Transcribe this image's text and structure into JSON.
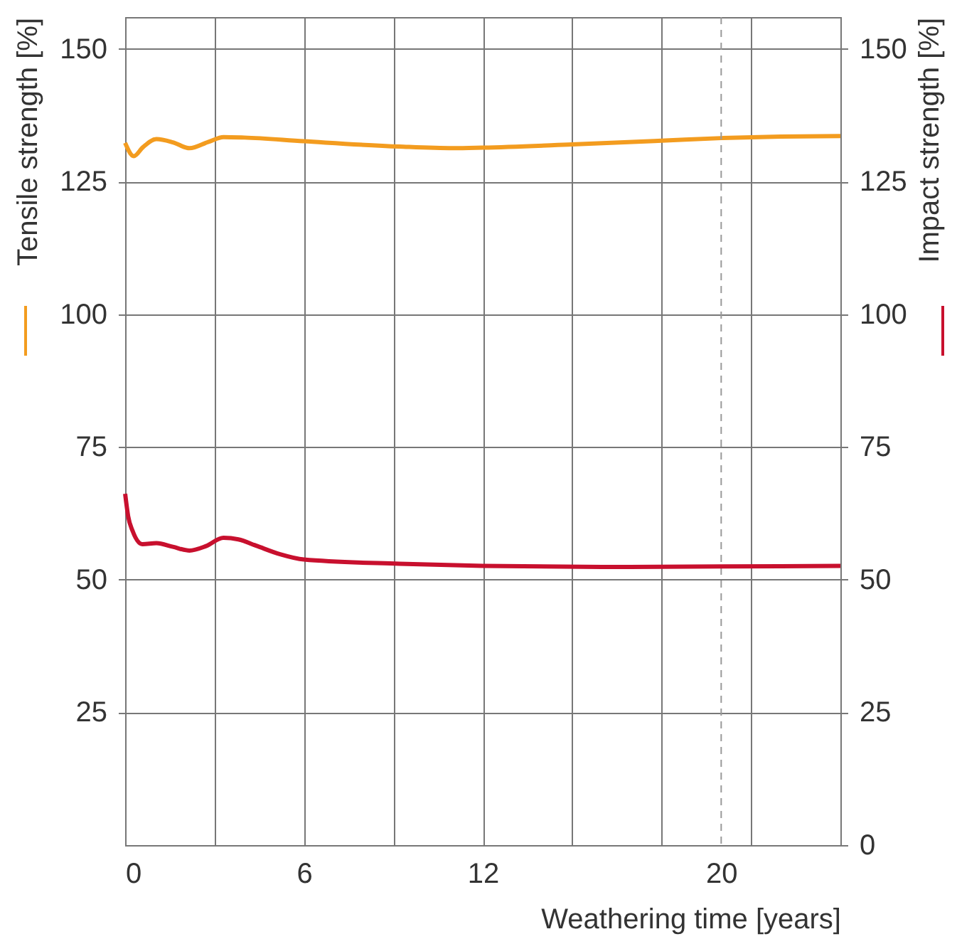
{
  "chart_data": {
    "type": "line",
    "xlabel": "Weathering time [years]",
    "ylabel": "Tensile strength [%]",
    "y2label": "Impact strength [%]",
    "xlim": [
      0,
      24
    ],
    "xticks": [
      0,
      {
        "value": 3,
        "label": null
      },
      6,
      {
        "value": 9,
        "label": null
      },
      12,
      {
        "value": 15,
        "label": null
      },
      {
        "value": 18,
        "label": null
      },
      20,
      {
        "value": 21,
        "label": null
      }
    ],
    "ylim": [
      0,
      156
    ],
    "yticks": [
      25,
      50,
      75,
      100,
      125,
      150
    ],
    "y2lim": [
      0,
      156
    ],
    "y2ticks": [
      0,
      25,
      50,
      75,
      100,
      125,
      150
    ],
    "grid": true,
    "line_style": "solid",
    "marker": "none",
    "ref_lines": [
      {
        "axis": "x",
        "value": 20,
        "line_style": "dashed",
        "color": "#999999"
      }
    ],
    "series": [
      {
        "color": "#f39c1f",
        "x": [
          0,
          0.29,
          0.6,
          1.05,
          1.6,
          2.16,
          2.8,
          3.3,
          4,
          6,
          9.2,
          11,
          12,
          15,
          18,
          20,
          22,
          24
        ],
        "values": [
          132.3,
          129.8,
          131.5,
          133,
          132.4,
          131.3,
          132.5,
          133.4,
          133.3,
          132.6,
          131.6,
          131.3,
          131.4,
          132,
          132.7,
          133.2,
          133.5,
          133.6
        ]
      },
      {
        "color": "#c8102e",
        "axis": "y2",
        "x": [
          0,
          0.1,
          0.25,
          0.58,
          1.05,
          1.6,
          2.16,
          2.7,
          3.3,
          3.8,
          4.4,
          5.2,
          6,
          9.2,
          12,
          16,
          20,
          24
        ],
        "values": [
          66.2,
          62,
          59.2,
          56.7,
          56.9,
          56.2,
          55.5,
          56.3,
          57.9,
          57.6,
          56.4,
          54.8,
          53.8,
          53,
          52.6,
          52.4,
          52.5,
          52.6
        ]
      }
    ]
  }
}
